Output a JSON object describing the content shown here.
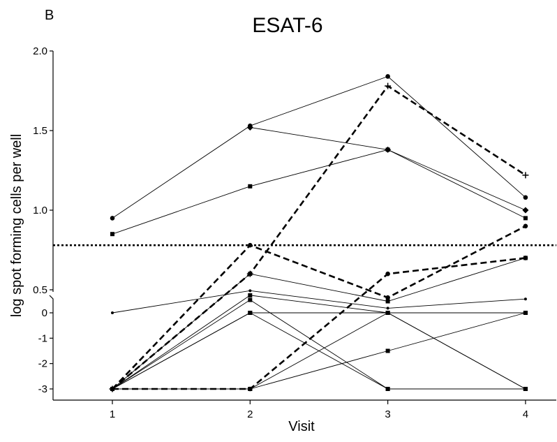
{
  "panel_label": "B",
  "chart_data": {
    "type": "line",
    "title": "ESAT-6",
    "xlabel": "Visit",
    "ylabel": "log spot forming cells per well",
    "x": [
      1,
      2,
      3,
      4
    ],
    "x_ticks": [
      "1",
      "2",
      "3",
      "4"
    ],
    "ylim_upper": [
      0.5,
      2.0
    ],
    "ylim_lower": [
      -3,
      0
    ],
    "y_ticks_upper": [
      "0.5",
      "1.0",
      "1.5",
      "2.0"
    ],
    "y_ticks_lower": [
      "0",
      "-1",
      "-2",
      "-3"
    ],
    "broken_axis": true,
    "threshold_line": {
      "value": 0.78,
      "style": "dotted"
    },
    "grid": false,
    "legend": "none",
    "series": [
      {
        "marker": "circle",
        "style": "solid",
        "values": [
          0.95,
          1.53,
          1.84,
          1.08
        ]
      },
      {
        "marker": "diamond",
        "style": "solid",
        "values": [
          null,
          1.52,
          1.38,
          1.0
        ]
      },
      {
        "marker": "square",
        "style": "solid",
        "values": [
          0.85,
          1.15,
          1.38,
          0.95
        ]
      },
      {
        "marker": "plus",
        "style": "dashed",
        "values": [
          -3,
          0.6,
          1.78,
          1.22
        ]
      },
      {
        "marker": "circle",
        "style": "dashed",
        "values": [
          -3,
          0.78,
          0.33,
          0.9
        ]
      },
      {
        "marker": "circle",
        "style": "dashed",
        "values": [
          -3,
          -3,
          0.6,
          0.7
        ]
      },
      {
        "marker": "square",
        "style": "solid",
        "values": [
          -3,
          0.6,
          0.25,
          0.7
        ]
      },
      {
        "marker": "star",
        "style": "solid",
        "values": [
          0,
          0.48,
          0.1,
          0.3
        ]
      },
      {
        "marker": "square",
        "style": "solid",
        "values": [
          -3,
          0.38,
          0,
          0
        ]
      },
      {
        "marker": "square",
        "style": "solid",
        "values": [
          -3,
          0,
          -3,
          -3
        ]
      },
      {
        "marker": "square",
        "style": "solid",
        "values": [
          -3,
          0,
          0,
          -3
        ]
      },
      {
        "marker": "square",
        "style": "solid",
        "values": [
          -3,
          -3,
          0,
          -3
        ]
      },
      {
        "marker": "square",
        "style": "solid",
        "values": [
          -3,
          -3,
          -1.5,
          0
        ]
      },
      {
        "marker": "square",
        "style": "solid",
        "values": [
          -3,
          0.28,
          -3,
          -3
        ]
      }
    ]
  }
}
